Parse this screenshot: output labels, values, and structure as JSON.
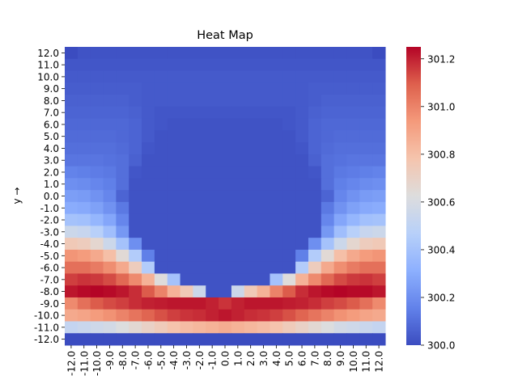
{
  "chart_data": {
    "type": "heatmap",
    "title": "Heat Map",
    "ylabel": "y →",
    "xlabel": "",
    "x_categories": [
      "-12.0",
      "-11.0",
      "-10.0",
      "-9.0",
      "-8.0",
      "-7.0",
      "-6.0",
      "-5.0",
      "-4.0",
      "-3.0",
      "-2.0",
      "-1.0",
      "0.0",
      "1.0",
      "2.0",
      "3.0",
      "4.0",
      "5.0",
      "6.0",
      "7.0",
      "8.0",
      "9.0",
      "10.0",
      "11.0",
      "12.0"
    ],
    "y_categories": [
      "12.0",
      "11.0",
      "10.0",
      "9.0",
      "8.0",
      "7.0",
      "6.0",
      "5.0",
      "4.0",
      "3.0",
      "2.0",
      "1.0",
      "0.0",
      "-1.0",
      "-2.0",
      "-3.0",
      "-4.0",
      "-5.0",
      "-6.0",
      "-7.0",
      "-8.0",
      "-9.0",
      "-10.0",
      "-11.0",
      "-12.0"
    ],
    "colormap": "coolwarm",
    "vmin": 300.0,
    "vmax": 301.25,
    "colorbar_ticks": [
      300.0,
      300.2,
      300.4,
      300.6,
      300.8,
      301.0,
      301.2
    ],
    "colorbar_tick_labels": [
      "300.0",
      "300.2",
      "300.4",
      "300.6",
      "300.8",
      "301.0",
      "301.2"
    ],
    "values": [
      [
        300.0,
        300.02,
        300.02,
        300.02,
        300.02,
        300.02,
        300.02,
        300.02,
        300.02,
        300.02,
        300.02,
        300.02,
        300.02,
        300.02,
        300.02,
        300.02,
        300.02,
        300.02,
        300.02,
        300.02,
        300.02,
        300.02,
        300.02,
        300.02,
        300.0
      ],
      [
        300.03,
        300.03,
        300.03,
        300.03,
        300.03,
        300.03,
        300.03,
        300.03,
        300.03,
        300.03,
        300.03,
        300.03,
        300.03,
        300.03,
        300.03,
        300.03,
        300.03,
        300.03,
        300.03,
        300.03,
        300.03,
        300.03,
        300.03,
        300.03,
        300.03
      ],
      [
        300.04,
        300.04,
        300.04,
        300.04,
        300.04,
        300.04,
        300.04,
        300.04,
        300.04,
        300.04,
        300.04,
        300.04,
        300.04,
        300.04,
        300.04,
        300.04,
        300.04,
        300.04,
        300.04,
        300.04,
        300.04,
        300.04,
        300.04,
        300.04,
        300.04
      ],
      [
        300.05,
        300.05,
        300.05,
        300.05,
        300.05,
        300.05,
        300.04,
        300.04,
        300.04,
        300.04,
        300.04,
        300.04,
        300.04,
        300.04,
        300.04,
        300.04,
        300.04,
        300.04,
        300.04,
        300.05,
        300.05,
        300.05,
        300.05,
        300.05,
        300.05
      ],
      [
        300.06,
        300.06,
        300.06,
        300.06,
        300.06,
        300.05,
        300.04,
        300.04,
        300.04,
        300.04,
        300.04,
        300.04,
        300.04,
        300.04,
        300.04,
        300.04,
        300.04,
        300.04,
        300.04,
        300.05,
        300.06,
        300.06,
        300.06,
        300.06,
        300.06
      ],
      [
        300.07,
        300.07,
        300.07,
        300.07,
        300.07,
        300.06,
        300.04,
        300.03,
        300.03,
        300.03,
        300.03,
        300.03,
        300.03,
        300.03,
        300.03,
        300.03,
        300.03,
        300.03,
        300.04,
        300.06,
        300.07,
        300.07,
        300.07,
        300.07,
        300.07
      ],
      [
        300.08,
        300.08,
        300.08,
        300.08,
        300.08,
        300.07,
        300.04,
        300.03,
        300.02,
        300.02,
        300.02,
        300.02,
        300.02,
        300.02,
        300.02,
        300.02,
        300.02,
        300.03,
        300.04,
        300.07,
        300.08,
        300.08,
        300.08,
        300.08,
        300.08
      ],
      [
        300.09,
        300.09,
        300.09,
        300.09,
        300.08,
        300.07,
        300.04,
        300.02,
        300.02,
        300.02,
        300.02,
        300.02,
        300.02,
        300.02,
        300.02,
        300.02,
        300.02,
        300.02,
        300.04,
        300.07,
        300.08,
        300.09,
        300.09,
        300.09,
        300.09
      ],
      [
        300.1,
        300.1,
        300.1,
        300.1,
        300.09,
        300.07,
        300.03,
        300.02,
        300.02,
        300.02,
        300.02,
        300.02,
        300.02,
        300.02,
        300.02,
        300.02,
        300.02,
        300.02,
        300.03,
        300.07,
        300.09,
        300.1,
        300.1,
        300.1,
        300.1
      ],
      [
        300.12,
        300.12,
        300.12,
        300.11,
        300.1,
        300.06,
        300.02,
        300.02,
        300.02,
        300.02,
        300.02,
        300.02,
        300.02,
        300.02,
        300.02,
        300.02,
        300.02,
        300.02,
        300.02,
        300.06,
        300.1,
        300.11,
        300.12,
        300.12,
        300.12
      ],
      [
        300.16,
        300.15,
        300.14,
        300.13,
        300.1,
        300.03,
        300.02,
        300.02,
        300.02,
        300.02,
        300.02,
        300.02,
        300.02,
        300.02,
        300.02,
        300.02,
        300.02,
        300.02,
        300.02,
        300.03,
        300.1,
        300.13,
        300.14,
        300.15,
        300.16
      ],
      [
        300.2,
        300.19,
        300.17,
        300.15,
        300.1,
        300.02,
        300.02,
        300.02,
        300.02,
        300.02,
        300.02,
        300.02,
        300.02,
        300.02,
        300.02,
        300.02,
        300.02,
        300.02,
        300.02,
        300.02,
        300.1,
        300.15,
        300.17,
        300.19,
        300.2
      ],
      [
        300.25,
        300.24,
        300.21,
        300.17,
        300.07,
        300.02,
        300.02,
        300.02,
        300.02,
        300.02,
        300.02,
        300.02,
        300.02,
        300.02,
        300.02,
        300.02,
        300.02,
        300.02,
        300.02,
        300.02,
        300.07,
        300.17,
        300.21,
        300.24,
        300.25
      ],
      [
        300.3,
        300.29,
        300.26,
        300.21,
        300.13,
        300.02,
        300.02,
        300.02,
        300.02,
        300.02,
        300.02,
        300.02,
        300.02,
        300.02,
        300.02,
        300.02,
        300.02,
        300.02,
        300.02,
        300.02,
        300.13,
        300.21,
        300.26,
        300.29,
        300.3
      ],
      [
        300.4,
        300.39,
        300.34,
        300.28,
        300.17,
        300.02,
        300.02,
        300.02,
        300.02,
        300.02,
        300.02,
        300.02,
        300.02,
        300.02,
        300.02,
        300.02,
        300.02,
        300.02,
        300.02,
        300.02,
        300.17,
        300.28,
        300.34,
        300.39,
        300.4
      ],
      [
        300.55,
        300.53,
        300.47,
        300.38,
        300.23,
        300.02,
        300.02,
        300.02,
        300.02,
        300.02,
        300.02,
        300.02,
        300.02,
        300.02,
        300.02,
        300.02,
        300.02,
        300.02,
        300.02,
        300.02,
        300.23,
        300.38,
        300.47,
        300.53,
        300.55
      ],
      [
        300.75,
        300.73,
        300.67,
        300.55,
        300.4,
        300.2,
        300.02,
        300.02,
        300.02,
        300.02,
        300.02,
        300.02,
        300.02,
        300.02,
        300.02,
        300.02,
        300.02,
        300.02,
        300.02,
        300.2,
        300.4,
        300.55,
        300.67,
        300.73,
        300.75
      ],
      [
        300.95,
        300.93,
        300.88,
        300.8,
        300.65,
        300.45,
        300.15,
        300.02,
        300.02,
        300.02,
        300.02,
        300.02,
        300.02,
        300.02,
        300.02,
        300.02,
        300.02,
        300.02,
        300.15,
        300.45,
        300.65,
        300.8,
        300.88,
        300.93,
        300.95
      ],
      [
        301.05,
        301.05,
        301.02,
        300.97,
        300.88,
        300.73,
        300.45,
        300.02,
        300.02,
        300.02,
        300.02,
        300.02,
        300.02,
        300.02,
        300.02,
        300.02,
        300.02,
        300.02,
        300.45,
        300.73,
        300.88,
        300.97,
        301.02,
        301.05,
        301.05
      ],
      [
        301.15,
        301.17,
        301.16,
        301.13,
        301.07,
        300.98,
        300.85,
        300.63,
        300.4,
        300.02,
        300.02,
        300.02,
        300.02,
        300.02,
        300.02,
        300.02,
        300.4,
        300.63,
        300.85,
        300.98,
        301.07,
        301.13,
        301.16,
        301.17,
        301.15
      ],
      [
        301.22,
        301.24,
        301.25,
        301.24,
        301.22,
        301.18,
        301.1,
        301.0,
        300.85,
        300.75,
        300.55,
        300.02,
        300.02,
        300.55,
        300.75,
        300.85,
        301.0,
        301.1,
        301.18,
        301.22,
        301.24,
        301.25,
        301.24,
        301.24,
        301.22
      ],
      [
        300.98,
        301.05,
        301.1,
        301.13,
        301.15,
        301.18,
        301.2,
        301.21,
        301.22,
        301.22,
        301.22,
        301.2,
        301.17,
        301.2,
        301.22,
        301.22,
        301.22,
        301.21,
        301.2,
        301.18,
        301.15,
        301.13,
        301.1,
        301.05,
        300.98
      ],
      [
        300.88,
        300.9,
        300.93,
        300.96,
        301.0,
        301.04,
        301.08,
        301.12,
        301.15,
        301.17,
        301.18,
        301.2,
        301.22,
        301.2,
        301.18,
        301.17,
        301.15,
        301.12,
        301.08,
        301.04,
        301.0,
        300.96,
        300.93,
        300.9,
        300.88
      ],
      [
        300.52,
        300.54,
        300.56,
        300.58,
        300.62,
        300.66,
        300.7,
        300.74,
        300.78,
        300.81,
        300.83,
        300.85,
        300.87,
        300.85,
        300.83,
        300.81,
        300.78,
        300.74,
        300.7,
        300.66,
        300.62,
        300.58,
        300.56,
        300.54,
        300.52
      ],
      [
        300.0,
        300.0,
        300.0,
        300.0,
        300.0,
        300.0,
        300.0,
        300.0,
        300.0,
        300.0,
        300.0,
        300.0,
        300.0,
        300.0,
        300.0,
        300.0,
        300.0,
        300.0,
        300.0,
        300.0,
        300.0,
        300.0,
        300.0,
        300.0,
        300.0
      ]
    ]
  }
}
